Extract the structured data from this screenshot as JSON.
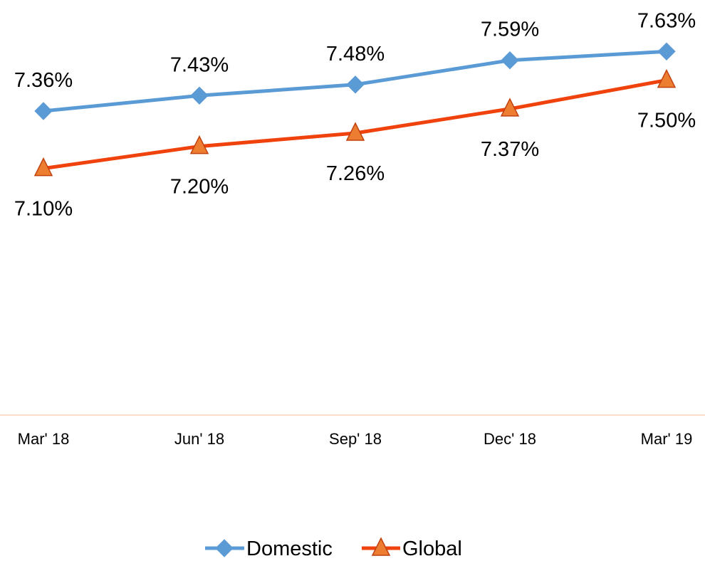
{
  "chart_data": {
    "type": "line",
    "title": "",
    "xlabel": "",
    "ylabel": "",
    "categories": [
      "Mar' 18",
      "Jun' 18",
      "Sep' 18",
      "Dec' 18",
      "Mar' 19"
    ],
    "series": [
      {
        "name": "Domestic",
        "values": [
          7.36,
          7.43,
          7.48,
          7.59,
          7.63
        ],
        "labels": [
          "7.36%",
          "7.43%",
          "7.48%",
          "7.59%",
          "7.63%"
        ],
        "color": "#5B9BD5",
        "marker": "diamond",
        "label_position": "above"
      },
      {
        "name": "Global",
        "values": [
          7.1,
          7.2,
          7.26,
          7.37,
          7.5
        ],
        "labels": [
          "7.10%",
          "7.20%",
          "7.26%",
          "7.37%",
          "7.50%"
        ],
        "color": "#F0420D",
        "marker_fill": "#ED7D31",
        "marker": "triangle",
        "label_position": "below"
      }
    ],
    "ylim": [
      6.5,
      7.7
    ],
    "grid": false,
    "axis_line_color": "#FCDCCB",
    "legend_position": "bottom"
  }
}
